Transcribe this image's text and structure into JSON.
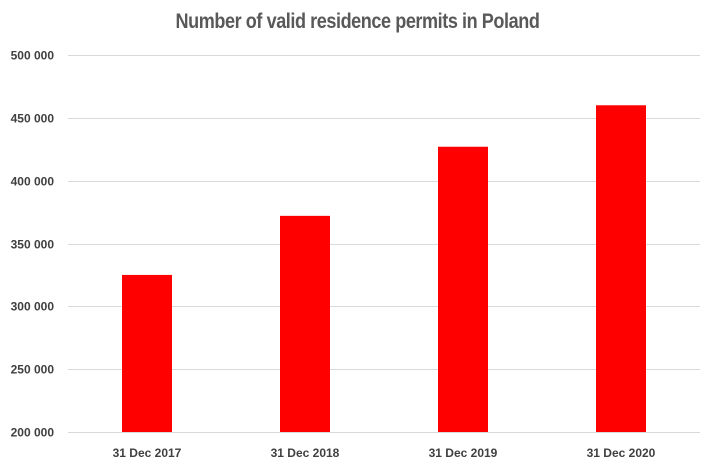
{
  "chart_data": {
    "type": "bar",
    "title": "Number of valid residence permits in Poland",
    "categories": [
      "31 Dec 2017",
      "31 Dec 2018",
      "31 Dec 2019",
      "31 Dec 2020"
    ],
    "values": [
      325000,
      372000,
      427000,
      460000
    ],
    "ylim": [
      200000,
      500000
    ],
    "yticks": [
      200000,
      250000,
      300000,
      350000,
      400000,
      450000,
      500000
    ],
    "ytick_labels": [
      "200 000",
      "250 000",
      "300 000",
      "350 000",
      "400 000",
      "450 000",
      "500 000"
    ],
    "grid": true,
    "legend": "none",
    "bar_color": "#ff0000",
    "grid_color": "#d9d9d9",
    "xlabel": "",
    "ylabel": ""
  }
}
